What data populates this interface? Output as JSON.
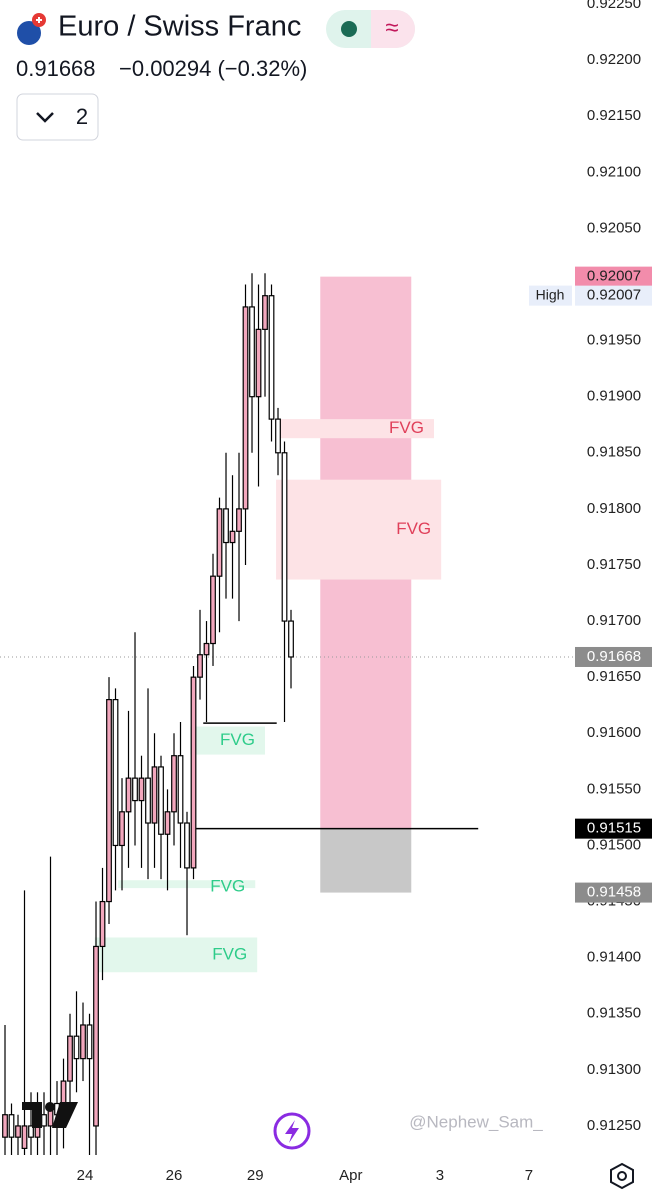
{
  "chart_data": {
    "type": "candlestick",
    "title": "Euro / Swiss Franc",
    "price": "0.91668",
    "change": "−0.00294 (−0.32%)",
    "indicator_count": "2",
    "watermark": "@Nephew_Sam_",
    "up_color": "#f2a7bd",
    "down_color": "#ffffff",
    "x": [
      0,
      1,
      2,
      3,
      4,
      5,
      6,
      7,
      8,
      9,
      10,
      11,
      12,
      13,
      14,
      15,
      16,
      17,
      18,
      19,
      20,
      21,
      22,
      23,
      24,
      25,
      26,
      27,
      28,
      29,
      30,
      31,
      32,
      33,
      34,
      35,
      36,
      37,
      38,
      39,
      40,
      41,
      42,
      43,
      44
    ],
    "open": [
      0.9124,
      0.9126,
      0.9124,
      0.9123,
      0.9125,
      0.9124,
      0.9126,
      0.9125,
      0.9127,
      0.9126,
      0.9129,
      0.9133,
      0.9131,
      0.9134,
      0.9125,
      0.9141,
      0.9145,
      0.9163,
      0.915,
      0.9153,
      0.9156,
      0.9154,
      0.9156,
      0.9152,
      0.9157,
      0.9151,
      0.9153,
      0.9158,
      0.9152,
      0.9148,
      0.9165,
      0.9167,
      0.9168,
      0.9174,
      0.918,
      0.9177,
      0.9178,
      0.918,
      0.9198,
      0.919,
      0.9196,
      0.9199,
      0.9188,
      0.9185,
      0.917
    ],
    "high": [
      0.9134,
      0.9127,
      0.9126,
      0.9146,
      0.9128,
      0.9128,
      0.9128,
      0.9149,
      0.9129,
      0.9131,
      0.9135,
      0.9137,
      0.9136,
      0.9135,
      0.9145,
      0.9148,
      0.9165,
      0.9164,
      0.9156,
      0.9162,
      0.9169,
      0.9158,
      0.9164,
      0.916,
      0.9158,
      0.9155,
      0.916,
      0.9161,
      0.9153,
      0.9166,
      0.9171,
      0.917,
      0.9176,
      0.9181,
      0.9185,
      0.9183,
      0.9185,
      0.92,
      0.9201,
      0.92,
      0.9201,
      0.92,
      0.9189,
      0.9186,
      0.9171
    ],
    "low": [
      0.9122,
      0.9122,
      0.9122,
      0.9122,
      0.9122,
      0.9122,
      0.9122,
      0.9122,
      0.9122,
      0.9123,
      0.9127,
      0.9128,
      0.9129,
      0.9122,
      0.9122,
      0.9138,
      0.9143,
      0.9146,
      0.9146,
      0.9148,
      0.915,
      0.9148,
      0.9147,
      0.9148,
      0.9147,
      0.9146,
      0.915,
      0.9148,
      0.9142,
      0.9147,
      0.9163,
      0.9161,
      0.9166,
      0.9169,
      0.9172,
      0.9172,
      0.917,
      0.9175,
      0.9185,
      0.9182,
      0.919,
      0.9186,
      0.9183,
      0.9161,
      0.9164
    ],
    "close": [
      0.9126,
      0.9124,
      0.9125,
      0.9125,
      0.9124,
      0.9126,
      0.9125,
      0.9127,
      0.9126,
      0.9129,
      0.9133,
      0.9131,
      0.9134,
      0.9131,
      0.9141,
      0.9145,
      0.9163,
      0.915,
      0.9153,
      0.9156,
      0.9154,
      0.9156,
      0.9152,
      0.9157,
      0.9151,
      0.9153,
      0.9158,
      0.9152,
      0.9148,
      0.9165,
      0.9167,
      0.9168,
      0.9174,
      0.918,
      0.9177,
      0.9178,
      0.918,
      0.9198,
      0.919,
      0.9196,
      0.9199,
      0.9188,
      0.9185,
      0.917,
      0.91668
    ],
    "xlim": [
      -0.77,
      87.69
    ],
    "ylim": [
      0.91225,
      0.9225
    ],
    "xticks": [
      {
        "value": 12.3,
        "label": "24"
      },
      {
        "value": 26,
        "label": "26"
      },
      {
        "value": 38.5,
        "label": "29"
      },
      {
        "value": 53.2,
        "label": "Apr"
      },
      {
        "value": 66.9,
        "label": "3"
      },
      {
        "value": 80.6,
        "label": "7"
      }
    ],
    "yticks": [
      {
        "value": 0.9125,
        "label": "0.91250"
      },
      {
        "value": 0.913,
        "label": "0.91300"
      },
      {
        "value": 0.9135,
        "label": "0.91350"
      },
      {
        "value": 0.914,
        "label": "0.91400"
      },
      {
        "value": 0.9145,
        "label": "0.91450"
      },
      {
        "value": 0.915,
        "label": "0.91500"
      },
      {
        "value": 0.9155,
        "label": "0.91550"
      },
      {
        "value": 0.916,
        "label": "0.91600"
      },
      {
        "value": 0.9165,
        "label": "0.91650"
      },
      {
        "value": 0.917,
        "label": "0.91700"
      },
      {
        "value": 0.9175,
        "label": "0.91750"
      },
      {
        "value": 0.918,
        "label": "0.91800"
      },
      {
        "value": 0.9185,
        "label": "0.91850"
      },
      {
        "value": 0.919,
        "label": "0.91900"
      },
      {
        "value": 0.9195,
        "label": "0.91950"
      },
      {
        "value": 0.92,
        "label": "0.92000"
      },
      {
        "value": 0.9205,
        "label": "0.92050"
      },
      {
        "value": 0.921,
        "label": "0.92100"
      },
      {
        "value": 0.9215,
        "label": "0.92150"
      },
      {
        "value": 0.922,
        "label": "0.92200"
      },
      {
        "value": 0.9225,
        "label": "0.92250"
      }
    ],
    "zones": [
      {
        "x": [
          48.5,
          62.5
        ],
        "y": [
          0.92007,
          0.91515
        ],
        "color": "#f7bfd2"
      },
      {
        "x": [
          48.5,
          62.5
        ],
        "y": [
          0.91515,
          0.91458
        ],
        "color": "#c8c8c8"
      },
      {
        "label": "FVG",
        "x": [
          42,
          66
        ],
        "y": [
          0.9188,
          0.91863
        ],
        "color": "#fde3e6",
        "text_color": "#e0405a"
      },
      {
        "label": "FVG",
        "x": [
          41.7,
          67.1
        ],
        "y": [
          0.91826,
          0.91737
        ],
        "color": "#fde3e6",
        "text_color": "#e0405a"
      },
      {
        "label": "FVG",
        "x": [
          28.5,
          40
        ],
        "y": [
          0.91606,
          0.91581
        ],
        "color": "#e2f7ec",
        "text_color": "#2ecc8a"
      },
      {
        "label": "FVG",
        "x": [
          17.4,
          38.5
        ],
        "y": [
          0.91469,
          0.91462
        ],
        "color": "#e2f7ec",
        "text_color": "#2ecc8a"
      },
      {
        "label": "FVG",
        "x": [
          13.8,
          38.8
        ],
        "y": [
          0.91418,
          0.91387
        ],
        "color": "#e2f7ec",
        "text_color": "#2ecc8a"
      }
    ],
    "lines": [
      {
        "value": 0.91515,
        "x": [
          29.4,
          72.8
        ],
        "color": "#000000"
      },
      {
        "value": 0.91609,
        "x": [
          30.5,
          41.8
        ],
        "color": "#000000"
      }
    ],
    "last_price": 0.91668,
    "price_tags": [
      {
        "value": 0.92007,
        "label": "0.92007",
        "color": "#f28cab",
        "text_color": "#222222"
      },
      {
        "value": 0.92007,
        "label": "0.92007",
        "name": "High",
        "color": "#e8eefa",
        "text_color": "#222222"
      },
      {
        "value": 0.91668,
        "label": "0.91668",
        "color": "#8c8c8c",
        "text_color": "#ffffff"
      },
      {
        "value": 0.91515,
        "label": "0.91515",
        "color": "#000000",
        "text_color": "#ffffff"
      },
      {
        "value": 0.91458,
        "label": "0.91458",
        "color": "#8c8c8c",
        "text_color": "#ffffff"
      }
    ]
  }
}
